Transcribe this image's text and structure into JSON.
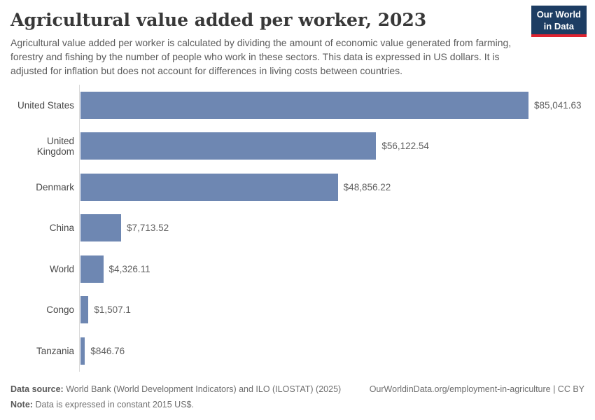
{
  "header": {
    "title": "Agricultural value added per worker, 2023",
    "subtitle": "Agricultural value added per worker is calculated by dividing the amount of economic value generated from farming, forestry and fishing by the number of people who work in these sectors. This data is expressed in US dollars. It is adjusted for inflation but does not account for differences in living costs between countries."
  },
  "logo": {
    "line1": "Our World",
    "line2": "in Data",
    "background_color": "#1d3d63",
    "accent_color": "#e02330"
  },
  "chart_data": {
    "type": "bar",
    "orientation": "horizontal",
    "title": "Agricultural value added per worker, 2023",
    "categories": [
      "United States",
      "United Kingdom",
      "Denmark",
      "China",
      "World",
      "Congo",
      "Tanzania"
    ],
    "values": [
      85041.63,
      56122.54,
      48856.22,
      7713.52,
      4326.11,
      1507.1,
      846.76
    ],
    "display_values": [
      "$85,041.63",
      "$56,122.54",
      "$48,856.22",
      "$7,713.52",
      "$4,326.11",
      "$1,507.1",
      "$846.76"
    ],
    "unit": "constant 2015 US$",
    "xlim": [
      0,
      85041.63
    ],
    "bar_color": "#6e87b2",
    "axis_color": "#d9d9d9",
    "grid": false,
    "legend": false,
    "value_labels": "outside-end"
  },
  "footer": {
    "source_label": "Data source:",
    "source_text": "World Bank (World Development Indicators) and ILO (ILOSTAT) (2025)",
    "attribution": "OurWorldinData.org/employment-in-agriculture | CC BY",
    "note_label": "Note:",
    "note_text": "Data is expressed in constant 2015 US$."
  }
}
